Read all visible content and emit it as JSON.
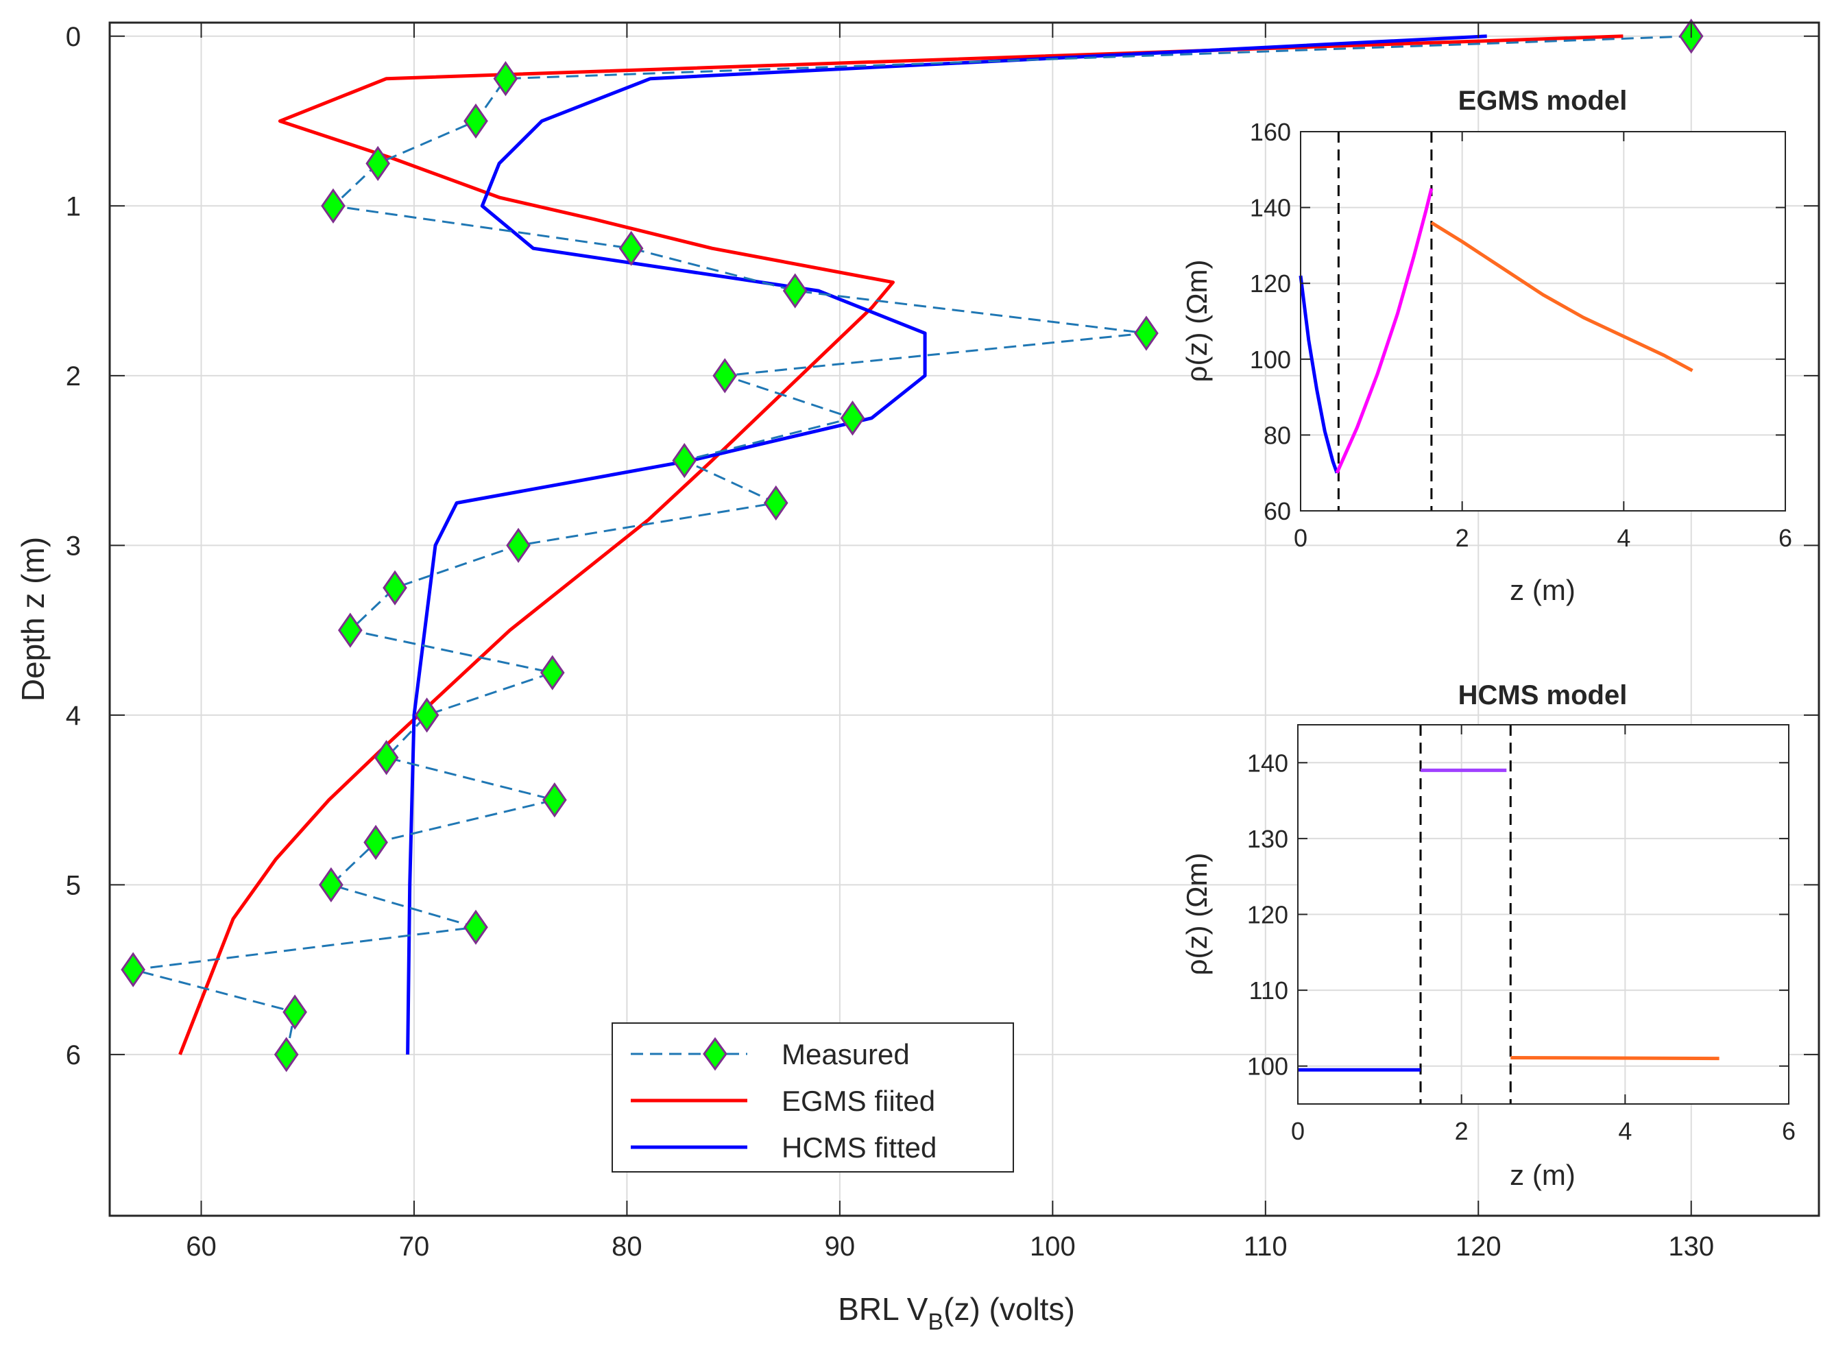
{
  "colors": {
    "measured": "#1f77b4",
    "measured_marker_fill": "#00ff00",
    "measured_marker_edge": "#7e2f8e",
    "egms": "#ff0000",
    "hcms": "#0000ff",
    "layer1": "#0000ff",
    "layer2": "#ff00ff",
    "layer2_hcms": "#a040ff",
    "layer3": "#ff6a20",
    "grid": "#dcdcdc",
    "axis": "#262626"
  },
  "chart_data": [
    {
      "id": "main",
      "type": "line",
      "title": "",
      "xlabel_main": "BRL V",
      "xlabel_sub": "B",
      "xlabel_tail": "(z)  (volts)",
      "ylabel": "Depth z (m)",
      "xlim": [
        55.7,
        136
      ],
      "ylim": [
        -0.08,
        6.95
      ],
      "y_reversed": true,
      "grid": true,
      "xticks": [
        60,
        70,
        80,
        90,
        100,
        110,
        120,
        130
      ],
      "xtick_labels": [
        "60",
        "70",
        "80",
        "90",
        "100",
        "110",
        "120",
        "130"
      ],
      "yticks": [
        0,
        1,
        2,
        3,
        4,
        5,
        6
      ],
      "ytick_labels": [
        "0",
        "1",
        "2",
        "3",
        "4",
        "5",
        "6"
      ],
      "legend_position": "bottom-center",
      "series": [
        {
          "name": "Measured",
          "style": "dashed-diamond",
          "points": [
            [
              130.0,
              0.0
            ],
            [
              74.3,
              0.25
            ],
            [
              72.9,
              0.5
            ],
            [
              68.3,
              0.75
            ],
            [
              66.2,
              1.0
            ],
            [
              80.2,
              1.25
            ],
            [
              87.9,
              1.5
            ],
            [
              104.4,
              1.75
            ],
            [
              84.6,
              2.0
            ],
            [
              90.6,
              2.25
            ],
            [
              82.7,
              2.5
            ],
            [
              87.0,
              2.75
            ],
            [
              74.9,
              3.0
            ],
            [
              69.1,
              3.25
            ],
            [
              67.0,
              3.5
            ],
            [
              76.5,
              3.75
            ],
            [
              70.6,
              4.0
            ],
            [
              68.7,
              4.25
            ],
            [
              76.6,
              4.5
            ],
            [
              68.2,
              4.75
            ],
            [
              66.1,
              5.0
            ],
            [
              72.9,
              5.25
            ],
            [
              56.8,
              5.5
            ],
            [
              64.4,
              5.75
            ],
            [
              64.0,
              6.0
            ]
          ]
        },
        {
          "name": "EGMS fiited",
          "style": "solid",
          "points": [
            [
              126.8,
              0.0
            ],
            [
              68.7,
              0.25
            ],
            [
              63.7,
              0.5
            ],
            [
              69.0,
              0.72
            ],
            [
              74.0,
              0.95
            ],
            [
              78.5,
              1.08
            ],
            [
              84.0,
              1.25
            ],
            [
              92.5,
              1.45
            ],
            [
              91.5,
              1.6
            ],
            [
              89.0,
              1.9
            ],
            [
              86.5,
              2.2
            ],
            [
              84.0,
              2.5
            ],
            [
              81.0,
              2.85
            ],
            [
              77.5,
              3.2
            ],
            [
              74.5,
              3.5
            ],
            [
              71.5,
              3.85
            ],
            [
              68.5,
              4.2
            ],
            [
              66.0,
              4.5
            ],
            [
              63.5,
              4.85
            ],
            [
              61.5,
              5.2
            ],
            [
              59.0,
              6.0
            ]
          ]
        },
        {
          "name": "HCMS fitted",
          "style": "solid",
          "points": [
            [
              120.4,
              0.0
            ],
            [
              81.1,
              0.25
            ],
            [
              76.0,
              0.5
            ],
            [
              74.0,
              0.75
            ],
            [
              73.2,
              1.0
            ],
            [
              75.6,
              1.25
            ],
            [
              89.0,
              1.5
            ],
            [
              94.0,
              1.75
            ],
            [
              94.0,
              2.0
            ],
            [
              91.5,
              2.25
            ],
            [
              83.0,
              2.5
            ],
            [
              72.0,
              2.75
            ],
            [
              71.0,
              3.0
            ],
            [
              70.5,
              3.5
            ],
            [
              70.0,
              4.0
            ],
            [
              69.8,
              5.0
            ],
            [
              69.7,
              6.0
            ]
          ]
        }
      ]
    },
    {
      "id": "egms_inset",
      "type": "line",
      "title": "EGMS model",
      "xlabel": "z (m)",
      "ylabel": "ρ(z)  (Ωm)",
      "xlim": [
        0,
        6
      ],
      "ylim": [
        60,
        160
      ],
      "grid": true,
      "xticks": [
        0,
        2,
        4,
        6
      ],
      "xtick_labels": [
        "0",
        "2",
        "4",
        "6"
      ],
      "yticks": [
        60,
        80,
        100,
        120,
        140,
        160
      ],
      "ytick_labels": [
        "60",
        "80",
        "100",
        "120",
        "140",
        "160"
      ],
      "boundaries": [
        0.47,
        1.62
      ],
      "series": [
        {
          "name": "layer 1",
          "points": [
            [
              0.0,
              122
            ],
            [
              0.1,
              105
            ],
            [
              0.2,
              92
            ],
            [
              0.3,
              81
            ],
            [
              0.4,
              73
            ],
            [
              0.45,
              70
            ]
          ]
        },
        {
          "name": "layer 2",
          "points": [
            [
              0.45,
              70
            ],
            [
              0.7,
              82
            ],
            [
              0.95,
              96
            ],
            [
              1.2,
              112
            ],
            [
              1.4,
              127
            ],
            [
              1.55,
              139
            ],
            [
              1.62,
              145
            ]
          ]
        },
        {
          "name": "layer 3",
          "points": [
            [
              1.62,
              136
            ],
            [
              2.0,
              131
            ],
            [
              2.5,
              124
            ],
            [
              3.0,
              117
            ],
            [
              3.5,
              111
            ],
            [
              4.0,
              106
            ],
            [
              4.5,
              101
            ],
            [
              4.85,
              97
            ]
          ]
        }
      ]
    },
    {
      "id": "hcms_inset",
      "type": "line",
      "title": "HCMS model",
      "xlabel": "z (m)",
      "ylabel": "ρ(z)  (Ωm)",
      "xlim": [
        0,
        6
      ],
      "ylim": [
        95,
        145
      ],
      "grid": true,
      "xticks": [
        0,
        2,
        4,
        6
      ],
      "xtick_labels": [
        "0",
        "2",
        "4",
        "6"
      ],
      "yticks": [
        100,
        110,
        120,
        130,
        140
      ],
      "ytick_labels": [
        "100",
        "110",
        "120",
        "130",
        "140"
      ],
      "boundaries": [
        1.5,
        2.6
      ],
      "series": [
        {
          "name": "layer 1",
          "points": [
            [
              0.0,
              99.5
            ],
            [
              1.5,
              99.5
            ]
          ]
        },
        {
          "name": "layer 2",
          "points": [
            [
              1.5,
              139
            ],
            [
              2.55,
              139
            ]
          ]
        },
        {
          "name": "layer 3",
          "points": [
            [
              2.6,
              101.1
            ],
            [
              5.15,
              101.0
            ]
          ]
        }
      ]
    }
  ]
}
